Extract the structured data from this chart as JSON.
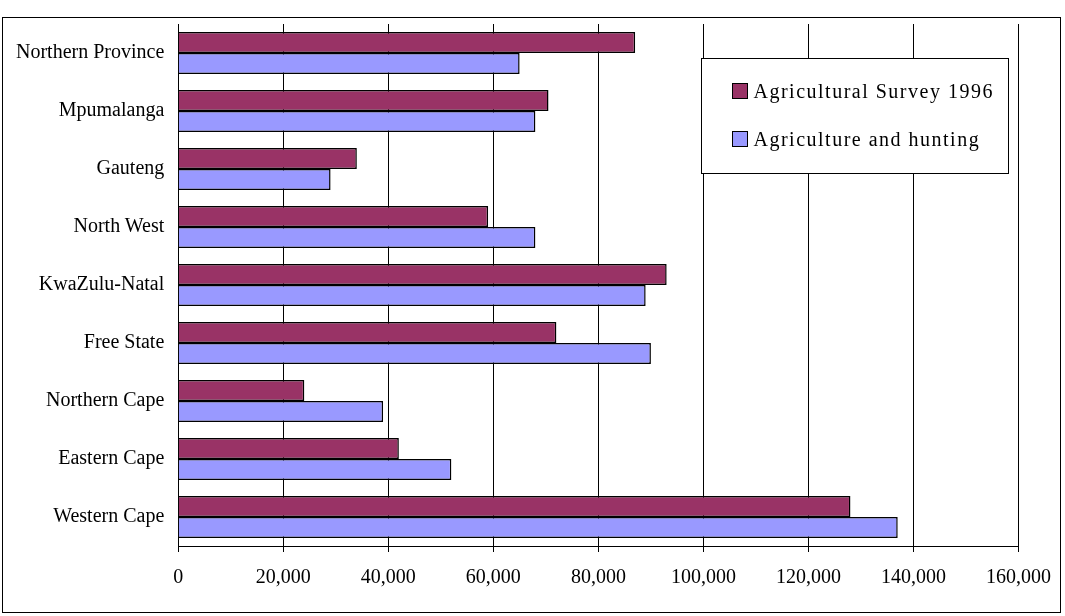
{
  "chart_data": {
    "type": "bar",
    "orientation": "horizontal",
    "categories": [
      "Northern Province",
      "Mpumalanga",
      "Gauteng",
      "North West",
      "KwaZulu-Natal",
      "Free State",
      "Northern Cape",
      "Eastern Cape",
      "Western Cape"
    ],
    "series": [
      {
        "name": "Agricultural Survey 1996",
        "color": "#993366",
        "values": [
          87000,
          70500,
          34000,
          59000,
          93000,
          72000,
          24000,
          42000,
          128000
        ]
      },
      {
        "name": "Agriculture and hunting",
        "color": "#9999ff",
        "values": [
          65000,
          68000,
          29000,
          68000,
          89000,
          90000,
          39000,
          52000,
          137000
        ]
      }
    ],
    "xlim": [
      0,
      160000
    ],
    "xticks": [
      0,
      {
        "value": 20000,
        "label": "20,000"
      },
      {
        "value": 40000,
        "label": "40,000"
      },
      {
        "value": 60000,
        "label": "60,000"
      },
      {
        "value": 80000,
        "label": "80,000"
      },
      {
        "value": 100000,
        "label": "100,000"
      },
      {
        "value": 120000,
        "label": "120,000"
      },
      {
        "value": 140000,
        "label": "140,000"
      },
      {
        "value": 160000,
        "label": "160,000"
      }
    ],
    "grid": "x",
    "legend": "top right"
  }
}
